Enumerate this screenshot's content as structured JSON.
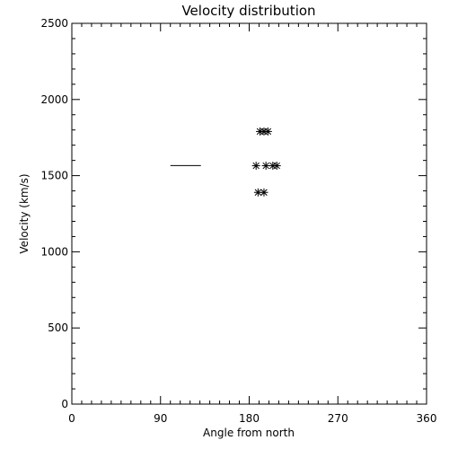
{
  "chart_data": {
    "type": "scatter",
    "title": "Velocity distribution",
    "xlabel": "Angle from north",
    "ylabel": "Velocity (km/s)",
    "xlim": [
      0,
      360
    ],
    "ylim": [
      0,
      2500
    ],
    "x_ticks": [
      0,
      90,
      180,
      270,
      360
    ],
    "y_ticks": [
      0,
      500,
      1000,
      1500,
      2000,
      2500
    ],
    "x_tick_labels": [
      "0",
      "90",
      "180",
      "270",
      "360"
    ],
    "y_tick_labels": [
      "0",
      "500",
      "1000",
      "1500",
      "2000",
      "2500"
    ],
    "x_minor_step": 10,
    "y_minor_step": 100,
    "grid": false,
    "marker": "asterisk",
    "points": [
      {
        "x": 191,
        "y": 1790
      },
      {
        "x": 195,
        "y": 1790
      },
      {
        "x": 199,
        "y": 1790
      },
      {
        "x": 187,
        "y": 1565
      },
      {
        "x": 197,
        "y": 1565
      },
      {
        "x": 204,
        "y": 1565
      },
      {
        "x": 208,
        "y": 1565
      },
      {
        "x": 189,
        "y": 1390
      },
      {
        "x": 195,
        "y": 1390
      }
    ],
    "segments": [
      {
        "x0": 100,
        "x1": 131,
        "y": 1566
      }
    ]
  }
}
